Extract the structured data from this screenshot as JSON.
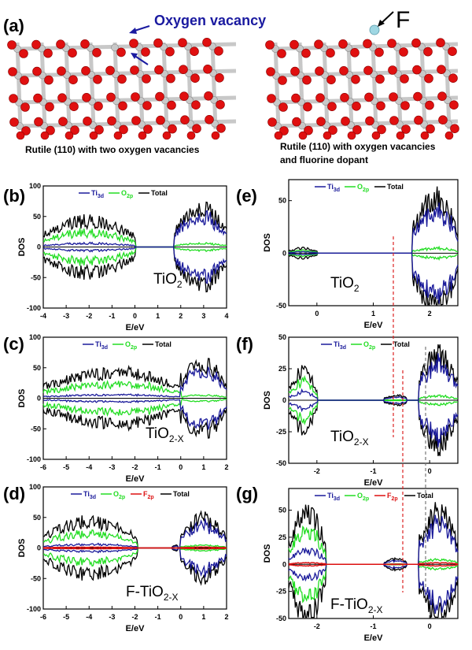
{
  "panel_labels": [
    "(a)",
    "(b)",
    "(c)",
    "(d)",
    "(e)",
    "(f)",
    "(g)"
  ],
  "structures": {
    "left_annotation": "Oxygen vacancy",
    "right_annotation": "F",
    "left_caption": "Rutile (110) with two oxygen vacancies",
    "right_caption_line1": "Rutile (110) with oxygen vacancies",
    "right_caption_line2": "and  fluorine dopant",
    "colors": {
      "oxygen": "#e01010",
      "titanium": "#c8c8c8",
      "fluorine": "#9fd7e3",
      "arrow": "#1a1aa0"
    }
  },
  "legend": {
    "ti": "Ti",
    "ti_sub": "3d",
    "o": "O",
    "o_sub": "2p",
    "f": "F",
    "f_sub": "2p",
    "total": "Total",
    "colors": {
      "ti": "#1a1a9a",
      "o": "#22dd22",
      "f": "#dd1111",
      "total": "#000000"
    }
  },
  "axes": {
    "ylabel": "DOS",
    "xlabel": "E/eV"
  },
  "chart_data": [
    {
      "panel": "(b)",
      "type": "line",
      "material": "TiO",
      "material_sub": "2",
      "xlim": [
        -4,
        4
      ],
      "ylim": [
        -100,
        100
      ],
      "xticks": [
        "-4",
        "-3",
        "-2",
        "-1",
        "0",
        "1",
        "2",
        "3",
        "4"
      ],
      "yticks": [
        "100",
        "50",
        "0",
        "-50",
        "-100"
      ],
      "series": [
        {
          "name": "Ti3d"
        },
        {
          "name": "O2p"
        },
        {
          "name": "Total"
        }
      ]
    },
    {
      "panel": "(c)",
      "type": "line",
      "material": "TiO",
      "material_sub": "2-X",
      "xlim": [
        -6,
        2
      ],
      "ylim": [
        -100,
        100
      ],
      "xticks": [
        "-6",
        "-5",
        "-4",
        "-3",
        "-2",
        "-1",
        "0",
        "1",
        "2"
      ],
      "yticks": [
        "100",
        "50",
        "0",
        "-50",
        "-100"
      ],
      "series": [
        {
          "name": "Ti3d"
        },
        {
          "name": "O2p"
        },
        {
          "name": "Total"
        }
      ]
    },
    {
      "panel": "(d)",
      "type": "line",
      "material": "F-TiO",
      "material_sub": "2-X",
      "xlim": [
        -6,
        2
      ],
      "ylim": [
        -100,
        100
      ],
      "xticks": [
        "-6",
        "-5",
        "-4",
        "-3",
        "-2",
        "-1",
        "0",
        "1",
        "2"
      ],
      "yticks": [
        "100",
        "50",
        "0",
        "-50",
        "-100"
      ],
      "series": [
        {
          "name": "Ti3d"
        },
        {
          "name": "O2p"
        },
        {
          "name": "F2p"
        },
        {
          "name": "Total"
        }
      ]
    },
    {
      "panel": "(e)",
      "type": "line",
      "material": "TiO",
      "material_sub": "2",
      "xlim": [
        -0.5,
        2.5
      ],
      "ylim": [
        -50,
        70
      ],
      "xticks": [
        "0",
        "1",
        "2"
      ],
      "yticks": [
        "50",
        "0",
        "-50"
      ],
      "series": [
        {
          "name": "Ti3d"
        },
        {
          "name": "O2p"
        },
        {
          "name": "Total"
        }
      ]
    },
    {
      "panel": "(f)",
      "type": "line",
      "material": "TiO",
      "material_sub": "2-X",
      "xlim": [
        -2.5,
        0.5
      ],
      "ylim": [
        -50,
        50
      ],
      "xticks": [
        "-2",
        "-1",
        "0"
      ],
      "yticks": [
        "50",
        "25",
        "0",
        "-25",
        "-50"
      ],
      "series": [
        {
          "name": "Ti3d"
        },
        {
          "name": "O2p"
        },
        {
          "name": "Total"
        }
      ]
    },
    {
      "panel": "(g)",
      "type": "line",
      "material": "F-TiO",
      "material_sub": "2-X",
      "xlim": [
        -2.5,
        0.5
      ],
      "ylim": [
        -50,
        70
      ],
      "xticks": [
        "-2",
        "-1",
        "0"
      ],
      "yticks": [
        "50",
        "25",
        "0",
        "-25",
        "-50"
      ],
      "series": [
        {
          "name": "Ti3d"
        },
        {
          "name": "O2p"
        },
        {
          "name": "F2p"
        },
        {
          "name": "Total"
        }
      ]
    }
  ]
}
